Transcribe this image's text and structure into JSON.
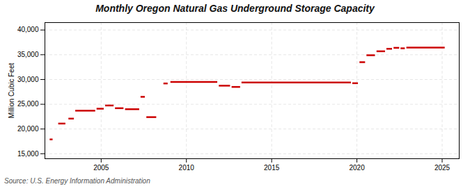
{
  "chart_data": {
    "type": "segment",
    "title": "Monthly Oregon Natural Gas Underground Storage Capacity",
    "ylabel": "Million Cubic Feet",
    "caption": "Source: U.S. Energy Information Administration",
    "color": "#cc0000",
    "grid": true,
    "xlim": [
      2001.7,
      2026.0
    ],
    "ylim": [
      14000,
      41500
    ],
    "xticks": [
      2005,
      2010,
      2015,
      2020,
      2025
    ],
    "yticks": [
      {
        "value": 15000,
        "label": "15,000"
      },
      {
        "value": 20000,
        "label": "20,000"
      },
      {
        "value": 25000,
        "label": "25,000"
      },
      {
        "value": 30000,
        "label": "30,000"
      },
      {
        "value": 35000,
        "label": "35,000"
      },
      {
        "value": 40000,
        "label": "40,000"
      }
    ],
    "x_start": [
      2002.0,
      2002.5,
      2003.1,
      2003.5,
      2004.75,
      2005.25,
      2005.83,
      2006.42,
      2007.33,
      2007.67,
      2008.67,
      2009.08,
      2011.92,
      2012.67,
      2013.25,
      2019.75,
      2020.17,
      2020.58,
      2021.17,
      2021.75,
      2022.17,
      2022.58,
      2022.92
    ],
    "x_end": [
      2002.17,
      2002.92,
      2003.42,
      2004.67,
      2005.17,
      2005.75,
      2006.33,
      2007.25,
      2007.58,
      2008.25,
      2008.92,
      2011.83,
      2012.58,
      2013.17,
      2019.67,
      2020.08,
      2020.5,
      2021.08,
      2021.67,
      2022.08,
      2022.5,
      2022.83,
      2025.17
    ],
    "values": [
      17900,
      21100,
      22100,
      23700,
      24100,
      24750,
      24200,
      24000,
      26500,
      22400,
      29200,
      29500,
      28750,
      28500,
      29400,
      29250,
      33500,
      34900,
      35700,
      36200,
      36400,
      36300,
      36450
    ]
  }
}
